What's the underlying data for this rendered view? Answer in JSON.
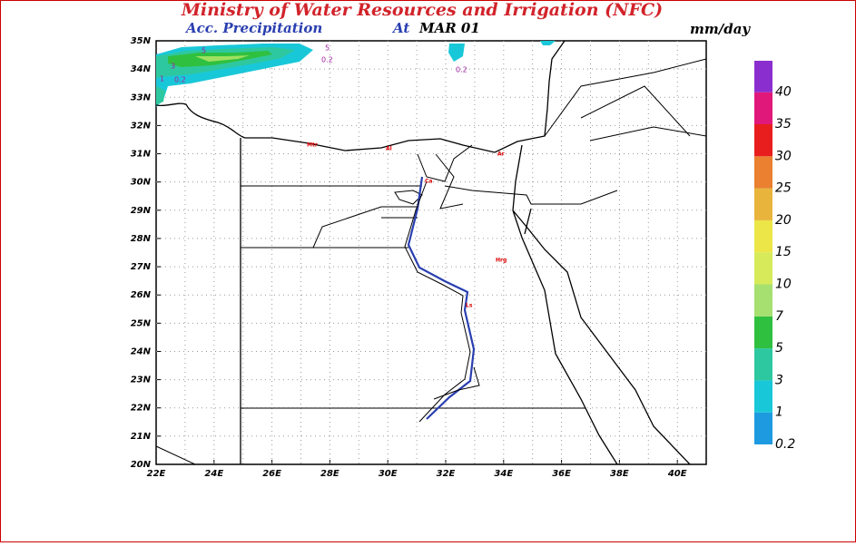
{
  "header": {
    "title": "Ministry of Water Resources and Irrigation (NFC)",
    "subtitle": "Acc. Precipitation",
    "at": "At",
    "date": "MAR 01",
    "unit": "mm/day"
  },
  "map": {
    "lat_labels": [
      "35N",
      "34N",
      "33N",
      "32N",
      "31N",
      "30N",
      "29N",
      "28N",
      "27N",
      "26N",
      "25N",
      "24N",
      "23N",
      "22N",
      "21N",
      "20N"
    ],
    "lon_labels": [
      "22E",
      "24E",
      "26E",
      "28E",
      "30E",
      "32E",
      "34E",
      "36E",
      "38E",
      "40E"
    ],
    "city_labels": [
      "Mtr",
      "Al",
      "Ca",
      "Ar",
      "Hrg",
      "Ls"
    ],
    "contour_labels": [
      "5",
      "3",
      "1",
      "0.2",
      "5",
      "0.2",
      "0.2"
    ]
  },
  "colorbar": {
    "labels": [
      0.2,
      1,
      3,
      5,
      7,
      10,
      15,
      20,
      25,
      30,
      35,
      40
    ],
    "colors": [
      "#1e9be0",
      "#19c8d8",
      "#2ec8a0",
      "#30c040",
      "#a6e070",
      "#d6ea5a",
      "#ece648",
      "#e8b43c",
      "#ea8030",
      "#e81e1e",
      "#e0187a",
      "#8a2ed0"
    ]
  }
}
